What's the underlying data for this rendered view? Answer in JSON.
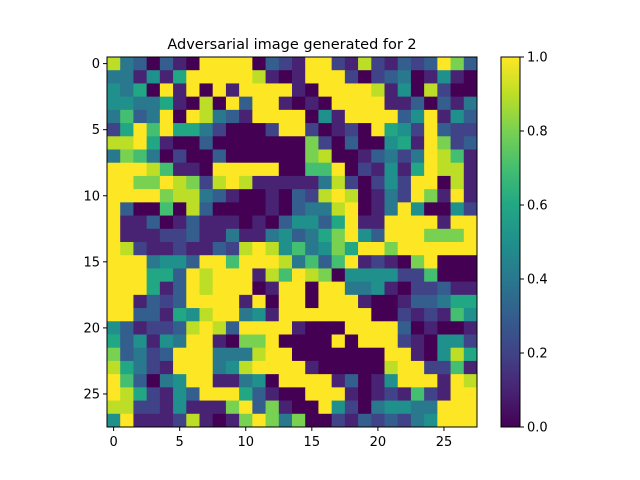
{
  "chart_data": {
    "type": "heatmap",
    "title": "Adversarial image generated for 2",
    "rows": 28,
    "cols": 28,
    "x_ticks": [
      0,
      5,
      10,
      15,
      20,
      25
    ],
    "y_ticks": [
      0,
      5,
      10,
      15,
      20,
      25
    ],
    "colorbar": {
      "min": 0.0,
      "max": 1.0,
      "ticks": [
        0.0,
        0.2,
        0.4,
        0.6,
        0.8,
        1.0
      ],
      "tick_labels": [
        "0.0",
        "0.2",
        "0.4",
        "0.6",
        "0.8",
        "1.0"
      ],
      "colormap": "viridis"
    },
    "values": [
      [
        0.9,
        0.4,
        0.3,
        0.0,
        0.3,
        0.1,
        0.0,
        1.0,
        1.0,
        1.0,
        1.0,
        0.0,
        0.3,
        0.2,
        0.1,
        1.0,
        1.0,
        0.2,
        0.1,
        0.9,
        0.2,
        0.1,
        0.3,
        0.2,
        0.3,
        1.0,
        0.8,
        0.3
      ],
      [
        0.4,
        0.4,
        0.1,
        0.5,
        0.1,
        0.6,
        1.0,
        1.0,
        1.0,
        1.0,
        1.0,
        0.9,
        0.1,
        0.0,
        0.1,
        1.0,
        1.0,
        1.0,
        0.2,
        0.0,
        0.2,
        0.3,
        0.4,
        0.0,
        0.1,
        0.5,
        0.1,
        0.0
      ],
      [
        0.5,
        0.4,
        0.6,
        0.0,
        1.0,
        0.1,
        1.0,
        0.0,
        1.0,
        0.1,
        1.0,
        1.0,
        1.0,
        1.0,
        0.1,
        0.0,
        1.0,
        1.0,
        1.0,
        1.0,
        0.9,
        0.1,
        0.5,
        0.0,
        0.9,
        0.2,
        0.0,
        0.0
      ],
      [
        0.5,
        0.5,
        0.4,
        0.4,
        0.6,
        0.1,
        0.0,
        0.9,
        0.0,
        1.0,
        0.3,
        1.0,
        1.0,
        0.1,
        0.0,
        0.1,
        0.0,
        1.0,
        1.0,
        1.0,
        1.0,
        0.1,
        0.1,
        0.3,
        0.0,
        0.3,
        0.1,
        0.4
      ],
      [
        0.4,
        0.7,
        0.3,
        0.4,
        1.0,
        0.0,
        1.0,
        0.9,
        0.4,
        0.3,
        0.1,
        1.0,
        1.0,
        1.0,
        1.0,
        0.0,
        0.5,
        0.1,
        1.0,
        1.0,
        1.0,
        1.0,
        0.3,
        0.5,
        1.0,
        0.1,
        0.5,
        0.3
      ],
      [
        0.2,
        0.6,
        1.0,
        0.7,
        1.0,
        0.6,
        0.6,
        0.4,
        0.2,
        0.0,
        0.0,
        0.0,
        0.2,
        1.0,
        1.0,
        0.2,
        0.0,
        0.1,
        0.2,
        0.0,
        1.0,
        0.6,
        0.5,
        0.2,
        1.0,
        0.3,
        0.2,
        0.2
      ],
      [
        0.9,
        0.9,
        1.0,
        0.6,
        0.1,
        0.0,
        0.0,
        0.3,
        0.0,
        0.0,
        0.0,
        0.0,
        0.0,
        0.0,
        0.0,
        0.8,
        0.2,
        0.0,
        0.3,
        0.0,
        0.0,
        0.5,
        0.6,
        0.1,
        1.0,
        0.8,
        0.2,
        0.3
      ],
      [
        0.4,
        0.8,
        0.7,
        0.4,
        0.0,
        0.2,
        0.0,
        0.0,
        0.3,
        0.0,
        0.0,
        0.0,
        0.0,
        0.0,
        0.0,
        0.8,
        0.9,
        0.0,
        0.0,
        0.1,
        0.3,
        0.4,
        0.2,
        0.4,
        1.0,
        0.9,
        0.7,
        0.1
      ],
      [
        1.0,
        1.0,
        1.0,
        0.9,
        0.7,
        0.1,
        0.1,
        0.0,
        1.0,
        1.0,
        1.0,
        1.0,
        1.0,
        0.0,
        0.0,
        0.7,
        0.7,
        1.0,
        0.0,
        0.2,
        0.1,
        0.5,
        0.1,
        0.6,
        1.0,
        0.9,
        0.9,
        0.1
      ],
      [
        1.0,
        1.0,
        0.8,
        0.8,
        1.0,
        0.9,
        0.8,
        0.2,
        0.9,
        1.0,
        0.9,
        0.1,
        0.1,
        0.1,
        0.1,
        0.1,
        0.4,
        0.9,
        0.2,
        0.0,
        0.2,
        0.5,
        0.2,
        1.0,
        1.0,
        0.0,
        0.9,
        0.1
      ],
      [
        1.0,
        1.0,
        1.0,
        1.0,
        0.8,
        0.9,
        0.9,
        0.4,
        0.3,
        0.1,
        0.0,
        0.0,
        0.1,
        0.0,
        0.3,
        0.2,
        0.9,
        1.0,
        0.9,
        0.0,
        0.1,
        0.4,
        0.2,
        1.0,
        0.8,
        0.1,
        1.0,
        0.1
      ],
      [
        1.0,
        0.3,
        0.0,
        0.0,
        0.7,
        0.0,
        0.9,
        0.3,
        0.0,
        0.0,
        0.0,
        0.0,
        0.1,
        0.0,
        0.3,
        0.4,
        0.4,
        0.9,
        1.0,
        0.0,
        0.1,
        0.4,
        1.0,
        0.5,
        0.0,
        0.0,
        0.5,
        0.2
      ],
      [
        1.0,
        0.1,
        0.1,
        0.3,
        0.0,
        0.1,
        0.3,
        0.1,
        0.1,
        0.1,
        0.0,
        0.1,
        0.0,
        0.3,
        0.5,
        0.5,
        0.3,
        0.6,
        1.0,
        0.1,
        0.1,
        1.0,
        1.0,
        1.0,
        1.0,
        0.1,
        1.0,
        1.0
      ],
      [
        1.0,
        0.1,
        0.1,
        0.1,
        0.2,
        0.2,
        0.3,
        0.1,
        0.1,
        0.4,
        0.1,
        0.1,
        0.4,
        0.5,
        0.3,
        0.4,
        0.6,
        0.8,
        1.0,
        0.5,
        0.3,
        1.0,
        1.0,
        1.0,
        0.8,
        0.8,
        0.8,
        1.0
      ],
      [
        1.0,
        0.9,
        0.2,
        0.1,
        0.1,
        0.2,
        0.1,
        0.1,
        0.3,
        0.2,
        0.9,
        1.0,
        0.9,
        0.5,
        0.7,
        0.4,
        0.5,
        0.8,
        0.6,
        1.0,
        1.0,
        0.8,
        1.0,
        1.0,
        1.0,
        1.0,
        1.0,
        1.0
      ],
      [
        1.0,
        1.0,
        1.0,
        0.4,
        0.5,
        0.5,
        0.3,
        1.0,
        1.0,
        0.7,
        1.0,
        1.0,
        1.0,
        0.9,
        0.4,
        0.7,
        0.3,
        0.7,
        1.0,
        0.1,
        0.2,
        0.1,
        0.0,
        0.8,
        1.0,
        0.0,
        0.0,
        0.0
      ],
      [
        1.0,
        1.0,
        1.0,
        0.6,
        0.6,
        0.3,
        1.0,
        0.9,
        1.0,
        1.0,
        1.0,
        0.1,
        0.9,
        0.7,
        1.0,
        0.9,
        0.8,
        0.0,
        0.5,
        0.5,
        0.5,
        0.5,
        0.2,
        0.2,
        0.7,
        0.0,
        0.0,
        0.0
      ],
      [
        1.0,
        1.0,
        1.0,
        0.6,
        0.1,
        0.3,
        1.0,
        0.9,
        1.0,
        1.0,
        1.0,
        0.0,
        0.1,
        1.0,
        1.0,
        0.0,
        1.0,
        1.0,
        0.4,
        0.4,
        0.5,
        0.1,
        0.0,
        0.2,
        0.2,
        0.3,
        0.1,
        0.1
      ],
      [
        1.0,
        1.0,
        0.1,
        0.3,
        0.2,
        0.3,
        1.0,
        1.0,
        1.0,
        1.0,
        0.1,
        1.0,
        0.0,
        1.0,
        1.0,
        0.0,
        1.0,
        1.0,
        1.0,
        0.1,
        0.0,
        0.0,
        0.1,
        0.3,
        0.3,
        0.4,
        0.6,
        0.6
      ],
      [
        1.0,
        1.0,
        0.3,
        0.3,
        0.1,
        0.6,
        0.5,
        0.9,
        1.0,
        1.0,
        0.4,
        0.5,
        0.1,
        1.0,
        1.0,
        1.0,
        1.0,
        1.0,
        1.0,
        1.0,
        0.0,
        0.0,
        0.2,
        0.1,
        0.2,
        0.1,
        0.7,
        0.5
      ],
      [
        0.5,
        0.3,
        0.1,
        0.2,
        0.2,
        0.3,
        0.9,
        1.0,
        0.9,
        0.3,
        1.0,
        1.0,
        1.0,
        1.0,
        0.1,
        0.0,
        0.0,
        0.0,
        1.0,
        1.0,
        1.0,
        1.0,
        0.3,
        0.0,
        0.1,
        0.0,
        0.0,
        0.1
      ],
      [
        0.6,
        0.3,
        0.5,
        0.1,
        0.5,
        0.4,
        1.0,
        1.0,
        0.1,
        0.0,
        0.8,
        0.8,
        1.0,
        0.0,
        0.0,
        0.0,
        0.0,
        1.0,
        0.0,
        1.0,
        1.0,
        1.0,
        0.2,
        0.1,
        0.0,
        0.5,
        0.5,
        0.2
      ],
      [
        0.8,
        0.3,
        0.4,
        0.2,
        0.3,
        1.0,
        1.0,
        1.0,
        0.4,
        0.4,
        0.4,
        0.9,
        1.0,
        1.0,
        0.0,
        0.0,
        0.0,
        0.0,
        0.0,
        0.0,
        0.0,
        1.0,
        1.0,
        0.1,
        0.0,
        0.5,
        0.9,
        0.6
      ],
      [
        0.9,
        0.6,
        0.4,
        0.2,
        0.1,
        1.0,
        1.0,
        1.0,
        0.4,
        0.5,
        0.9,
        1.0,
        1.0,
        1.0,
        1.0,
        0.1,
        0.0,
        0.0,
        0.0,
        0.0,
        0.0,
        0.9,
        1.0,
        1.0,
        0.2,
        0.2,
        0.7,
        0.1
      ],
      [
        1.0,
        0.7,
        0.3,
        0.0,
        0.4,
        0.5,
        1.0,
        1.0,
        0.1,
        0.1,
        0.4,
        0.5,
        0.0,
        1.0,
        1.0,
        1.0,
        1.0,
        0.1,
        0.3,
        0.0,
        0.1,
        0.5,
        1.0,
        1.0,
        1.0,
        0.1,
        1.0,
        0.9
      ],
      [
        1.0,
        0.9,
        0.6,
        0.2,
        0.1,
        0.5,
        0.3,
        1.0,
        1.0,
        1.0,
        0.6,
        0.3,
        0.1,
        0.0,
        0.0,
        1.0,
        1.0,
        1.0,
        0.1,
        0.0,
        0.1,
        0.2,
        0.1,
        0.7,
        0.2,
        0.1,
        1.0,
        1.0
      ],
      [
        0.9,
        0.9,
        0.2,
        0.2,
        0.1,
        0.5,
        0.1,
        0.1,
        0.1,
        0.8,
        1.0,
        0.3,
        0.8,
        0.1,
        0.0,
        0.0,
        1.0,
        0.5,
        0.2,
        0.0,
        0.4,
        0.5,
        0.5,
        0.4,
        0.4,
        1.0,
        1.0,
        1.0
      ],
      [
        0.5,
        1.0,
        0.1,
        0.1,
        0.1,
        0.2,
        0.9,
        0.1,
        0.0,
        0.1,
        0.8,
        1.0,
        0.8,
        0.4,
        0.8,
        0.0,
        0.0,
        0.2,
        0.1,
        0.3,
        0.2,
        0.3,
        0.2,
        0.4,
        0.5,
        1.0,
        1.0,
        1.0
      ]
    ]
  }
}
